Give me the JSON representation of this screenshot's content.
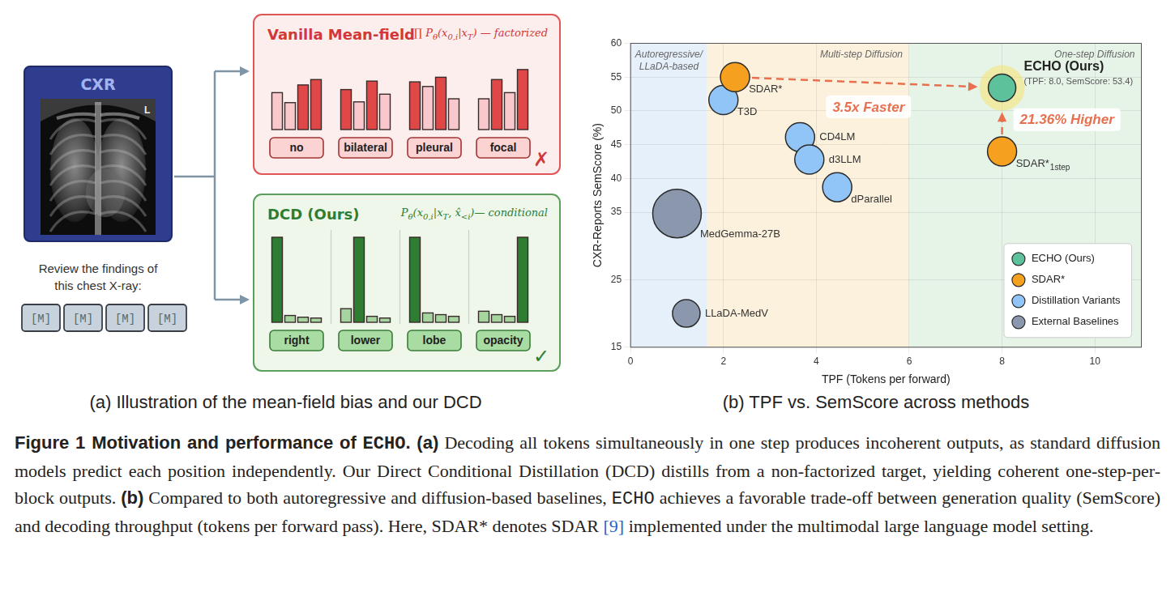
{
  "panel_a": {
    "subcaption": "(a) Illustration of the mean-field bias and our DCD",
    "image_title": "CXR",
    "image_marker": "L",
    "prompt": "Review the findings of this chest X-ray:",
    "mask_tokens": [
      "[M]",
      "[M]",
      "[M]",
      "[M]"
    ],
    "boxes": [
      {
        "title": "Vanilla Mean-field",
        "formula": [
          {
            "text": "∏ P"
          },
          {
            "text": "θ",
            "sub": true
          },
          {
            "text": "(x"
          },
          {
            "text": "0,i",
            "sub": true
          },
          {
            "text": "|x"
          },
          {
            "text": "T",
            "sub": true
          },
          {
            "text": ") — factorized"
          }
        ],
        "verdict": "✗",
        "groups": [
          {
            "label": "no",
            "values": [
              48,
              35,
              58,
              65
            ],
            "colors": [
              "#f8c8cc",
              "#f8c8cc",
              "#e04848",
              "#e04848"
            ]
          },
          {
            "label": "bilateral",
            "values": [
              52,
              36,
              63,
              46
            ],
            "colors": [
              "#e04848",
              "#f8c8cc",
              "#e04848",
              "#f8c8cc"
            ]
          },
          {
            "label": "pleural",
            "values": [
              62,
              56,
              68,
              40
            ],
            "colors": [
              "#e04848",
              "#f8c8cc",
              "#e04848",
              "#f8c8cc"
            ]
          },
          {
            "label": "focal",
            "values": [
              40,
              65,
              48,
              78
            ],
            "colors": [
              "#f8c8cc",
              "#e04848",
              "#f8c8cc",
              "#e04848"
            ]
          }
        ]
      },
      {
        "title": "DCD (Ours)",
        "formula": [
          {
            "text": "P"
          },
          {
            "text": "θ",
            "sub": true
          },
          {
            "text": "(x"
          },
          {
            "text": "0,i",
            "sub": true
          },
          {
            "text": "|x"
          },
          {
            "text": "T",
            "sub": true
          },
          {
            "text": ", x̂"
          },
          {
            "text": "<i",
            "sub": true
          },
          {
            "text": ")— conditional"
          }
        ],
        "verdict": "✓",
        "groups": [
          {
            "label": "right",
            "values": [
              100,
              8,
              6,
              5
            ],
            "colors": [
              "#2e7d32",
              "#a5d6a0",
              "#a5d6a0",
              "#a5d6a0"
            ]
          },
          {
            "label": "lower",
            "values": [
              16,
              100,
              7,
              5
            ],
            "colors": [
              "#a5d6a0",
              "#2e7d32",
              "#a5d6a0",
              "#a5d6a0"
            ]
          },
          {
            "label": "lobe",
            "values": [
              100,
              11,
              9,
              7
            ],
            "colors": [
              "#2e7d32",
              "#a5d6a0",
              "#a5d6a0",
              "#a5d6a0"
            ]
          },
          {
            "label": "opacity",
            "values": [
              13,
              9,
              7,
              100
            ],
            "colors": [
              "#a5d6a0",
              "#a5d6a0",
              "#a5d6a0",
              "#2e7d32"
            ]
          }
        ]
      }
    ]
  },
  "chart_data": {
    "type": "bubble",
    "caption": "(b) TPF vs. SemScore across methods",
    "x_label": "TPF (Tokens per forward)",
    "y_label": "CXR-Reports SemScore (%)",
    "xlim": [
      0,
      11
    ],
    "xticks": [
      0,
      2,
      4,
      6,
      8,
      10
    ],
    "ylim": [
      15,
      60
    ],
    "yticks": [
      15,
      25,
      35,
      40,
      45,
      50,
      55,
      60
    ],
    "grid": true,
    "legend": "lower right",
    "regions": [
      {
        "label": "Autoregressive/LLaDA-based",
        "from": 0,
        "to": 1.65,
        "color": "#e6f0fa"
      },
      {
        "label": "Multi-step Diffusion",
        "from": 1.65,
        "to": 6,
        "color": "#fcf1dc"
      },
      {
        "label": "One-step Diffusion",
        "from": 6,
        "to": 11,
        "color": "#e6f4e8"
      }
    ],
    "series": [
      {
        "name": "ECHO (Ours)",
        "color": "#5dc19c",
        "points": [
          {
            "x": 8.0,
            "y": 53.4,
            "size": 17,
            "label": "ECHO (Ours)",
            "note": "(TPF: 8.0, SemScore: 53.4)"
          }
        ]
      },
      {
        "name": "SDAR*",
        "color": "#f5a01e",
        "points": [
          {
            "x": 2.25,
            "y": 55.0,
            "size": 18,
            "label": "SDAR*"
          },
          {
            "x": 8.0,
            "y": 44.0,
            "size": 18,
            "label": "SDAR*",
            "label_subscript": "1step"
          }
        ]
      },
      {
        "name": "Distillation Variants",
        "color": "#92c5f7",
        "points": [
          {
            "x": 2.0,
            "y": 51.6,
            "size": 18,
            "label": "T3D"
          },
          {
            "x": 3.65,
            "y": 46.1,
            "size": 18,
            "label": "CD4LM"
          },
          {
            "x": 3.85,
            "y": 42.8,
            "size": 18,
            "label": "d3LLM"
          },
          {
            "x": 4.45,
            "y": 38.7,
            "size": 18,
            "label": "dParallel"
          }
        ]
      },
      {
        "name": "External Baselines",
        "color": "#8b97ad",
        "points": [
          {
            "x": 1.0,
            "y": 34.8,
            "size": 30,
            "label": "MedGemma-27B"
          },
          {
            "x": 1.2,
            "y": 20.0,
            "size": 17,
            "label": "LLaDA-MedV"
          }
        ]
      }
    ],
    "annotations": [
      {
        "text": "3.5x Faster",
        "from": [
          2.25,
          55.0
        ],
        "to": [
          8.0,
          53.4
        ],
        "color": "#e8704f"
      },
      {
        "text": "21.36% Higher",
        "from": [
          8.0,
          44.0
        ],
        "to": [
          8.0,
          53.4
        ],
        "color": "#e8704f"
      }
    ]
  },
  "figure_caption": [
    {
      "text": "Figure 1",
      "style": "heading"
    },
    {
      "text": "  Motivation and performance of ",
      "style": "heading"
    },
    {
      "text": "ECHO",
      "style": "mono_heading"
    },
    {
      "text": ". ",
      "style": "heading"
    },
    {
      "text": "(a)",
      "style": "heading"
    },
    {
      "text": " Decoding all tokens simultaneously in one step produces incoherent outputs, as standard diffusion models predict each position independently. Our Direct Conditional Distillation (DCD) distills from a non-factorized target, yielding coherent one-step-per-block outputs. ",
      "style": "plain"
    },
    {
      "text": "(b)",
      "style": "heading"
    },
    {
      "text": " Compared to both autoregressive and diffusion-based baselines, ",
      "style": "plain"
    },
    {
      "text": "ECHO",
      "style": "mono"
    },
    {
      "text": " achieves a favorable trade-off between generation quality (SemScore) and decoding throughput (tokens per forward pass). Here, SDAR* denotes SDAR ",
      "style": "plain"
    },
    {
      "text": "[9]",
      "style": "cite"
    },
    {
      "text": " implemented under the multimodal large language model setting.",
      "style": "plain"
    }
  ]
}
